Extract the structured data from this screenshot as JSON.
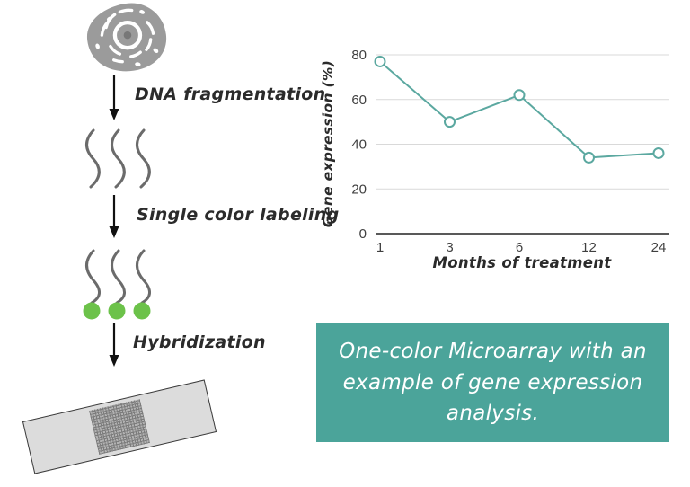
{
  "diagram": {
    "steps": [
      {
        "label": "DNA fragmentation"
      },
      {
        "label": "Single color labeling"
      },
      {
        "label": "Hybridization"
      }
    ],
    "cell_color": "#9b9b9b",
    "strand_color": "#6b6b6b",
    "dye_color": "#6cc24a",
    "slide_color": "#dcdcdc"
  },
  "chart_data": {
    "type": "line",
    "categories": [
      "1",
      "3",
      "6",
      "12",
      "24"
    ],
    "values": [
      77,
      50,
      62,
      34,
      36
    ],
    "title": "",
    "xlabel": "Months of treatment",
    "ylabel": "Gene expression (%)",
    "yticks": [
      0,
      20,
      40,
      60,
      80
    ],
    "ylim": [
      0,
      80
    ],
    "grid": "horizontal",
    "legend": "none",
    "line_color": "#5ba8a0",
    "marker": "open-circle",
    "marker_fill": "#ffffff",
    "gridline_color": "#d9d9d9",
    "axis_color": "#595959",
    "tick_color": "#3f3f3f"
  },
  "caption": {
    "text": "One-color Microarray with an example of gene expression analysis.",
    "background": "#4ba49a",
    "text_color": "#ffffff"
  }
}
